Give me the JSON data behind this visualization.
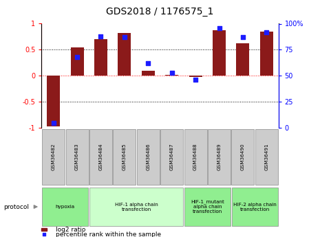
{
  "title": "GDS2018 / 1176575_1",
  "samples": [
    "GSM36482",
    "GSM36483",
    "GSM36484",
    "GSM36485",
    "GSM36486",
    "GSM36487",
    "GSM36488",
    "GSM36489",
    "GSM36490",
    "GSM36491"
  ],
  "log2_ratio": [
    -0.97,
    0.55,
    0.7,
    0.82,
    0.1,
    0.02,
    -0.02,
    0.87,
    0.62,
    0.85
  ],
  "percentile_rank": [
    5,
    68,
    88,
    87,
    62,
    53,
    46,
    96,
    87,
    92
  ],
  "ylim_left": [
    -1,
    1
  ],
  "ylim_right": [
    0,
    100
  ],
  "bar_color": "#8B1A1A",
  "scatter_color": "#1C1CFF",
  "groups": [
    {
      "label": "hypoxia",
      "start": 0,
      "end": 1,
      "color": "#90EE90"
    },
    {
      "label": "HIF-1 alpha chain\ntransfection",
      "start": 2,
      "end": 5,
      "color": "#CCFFCC"
    },
    {
      "label": "HIF-1_mutant\nalpha chain\ntransfection",
      "start": 6,
      "end": 7,
      "color": "#90EE90"
    },
    {
      "label": "HIF-2 alpha chain\ntransfection",
      "start": 8,
      "end": 9,
      "color": "#90EE90"
    }
  ],
  "legend_bar_label": "log2 ratio",
  "legend_scatter_label": "percentile rank within the sample",
  "left_yticks": [
    -1,
    -0.5,
    0,
    0.5,
    1
  ],
  "left_yticklabels": [
    "-1",
    "-0.5",
    "0",
    "0.5",
    "1"
  ],
  "right_yticks": [
    0,
    25,
    50,
    75,
    100
  ],
  "right_yticklabels": [
    "0",
    "25",
    "50",
    "75",
    "100%"
  ]
}
